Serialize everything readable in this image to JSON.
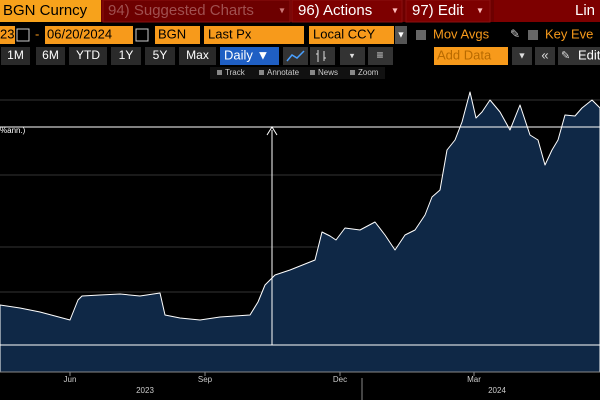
{
  "header": {
    "security": "BGN Curncy",
    "tabs": [
      "94) Suggested Charts",
      "96) Actions",
      "97) Edit"
    ],
    "right_tab": "Lin"
  },
  "controls": {
    "start_date": "23",
    "dash": "-",
    "end_date": "06/20/2024",
    "ticker": "BGN",
    "field": "Last Px",
    "currency": "Local CCY",
    "mov_avgs": "Mov Avgs",
    "key_events": "Key Eve"
  },
  "periods": [
    "1M",
    "6M",
    "YTD",
    "1Y",
    "5Y",
    "Max"
  ],
  "frequency": "Daily ▼",
  "add_data": "Add Data",
  "edit": "Edit",
  "tools": [
    "Track",
    "Annotate",
    "News",
    "Zoom"
  ],
  "chart": {
    "annotation": "%ann.)",
    "months": [
      "Jun",
      "Sep",
      "Dec",
      "Mar"
    ],
    "years": [
      "2023",
      "2024"
    ]
  }
}
